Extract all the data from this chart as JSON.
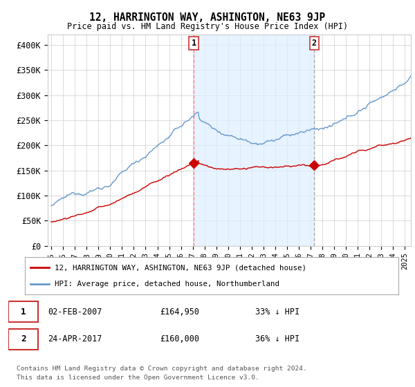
{
  "title": "12, HARRINGTON WAY, ASHINGTON, NE63 9JP",
  "subtitle": "Price paid vs. HM Land Registry's House Price Index (HPI)",
  "legend_line1": "12, HARRINGTON WAY, ASHINGTON, NE63 9JP (detached house)",
  "legend_line2": "HPI: Average price, detached house, Northumberland",
  "marker1_date": "02-FEB-2007",
  "marker1_price": "£164,950",
  "marker1_hpi": "33% ↓ HPI",
  "marker2_date": "24-APR-2017",
  "marker2_price": "£160,000",
  "marker2_hpi": "36% ↓ HPI",
  "footer1": "Contains HM Land Registry data © Crown copyright and database right 2024.",
  "footer2": "This data is licensed under the Open Government Licence v3.0.",
  "red_color": "#cc0000",
  "blue_color": "#6699cc",
  "fill_color": "#ddeeff",
  "marker1_vline_color": "#ff8888",
  "marker2_vline_color": "#aaaaaa",
  "marker_box_color": "#cc3333",
  "background_color": "#ffffff",
  "grid_color": "#cccccc",
  "ylim": [
    0,
    420000
  ],
  "xlim_start": 1994.7,
  "xlim_end": 2025.5,
  "marker1_x": 2007.09,
  "marker2_x": 2017.31,
  "marker1_y": 164950,
  "marker2_y": 160000
}
